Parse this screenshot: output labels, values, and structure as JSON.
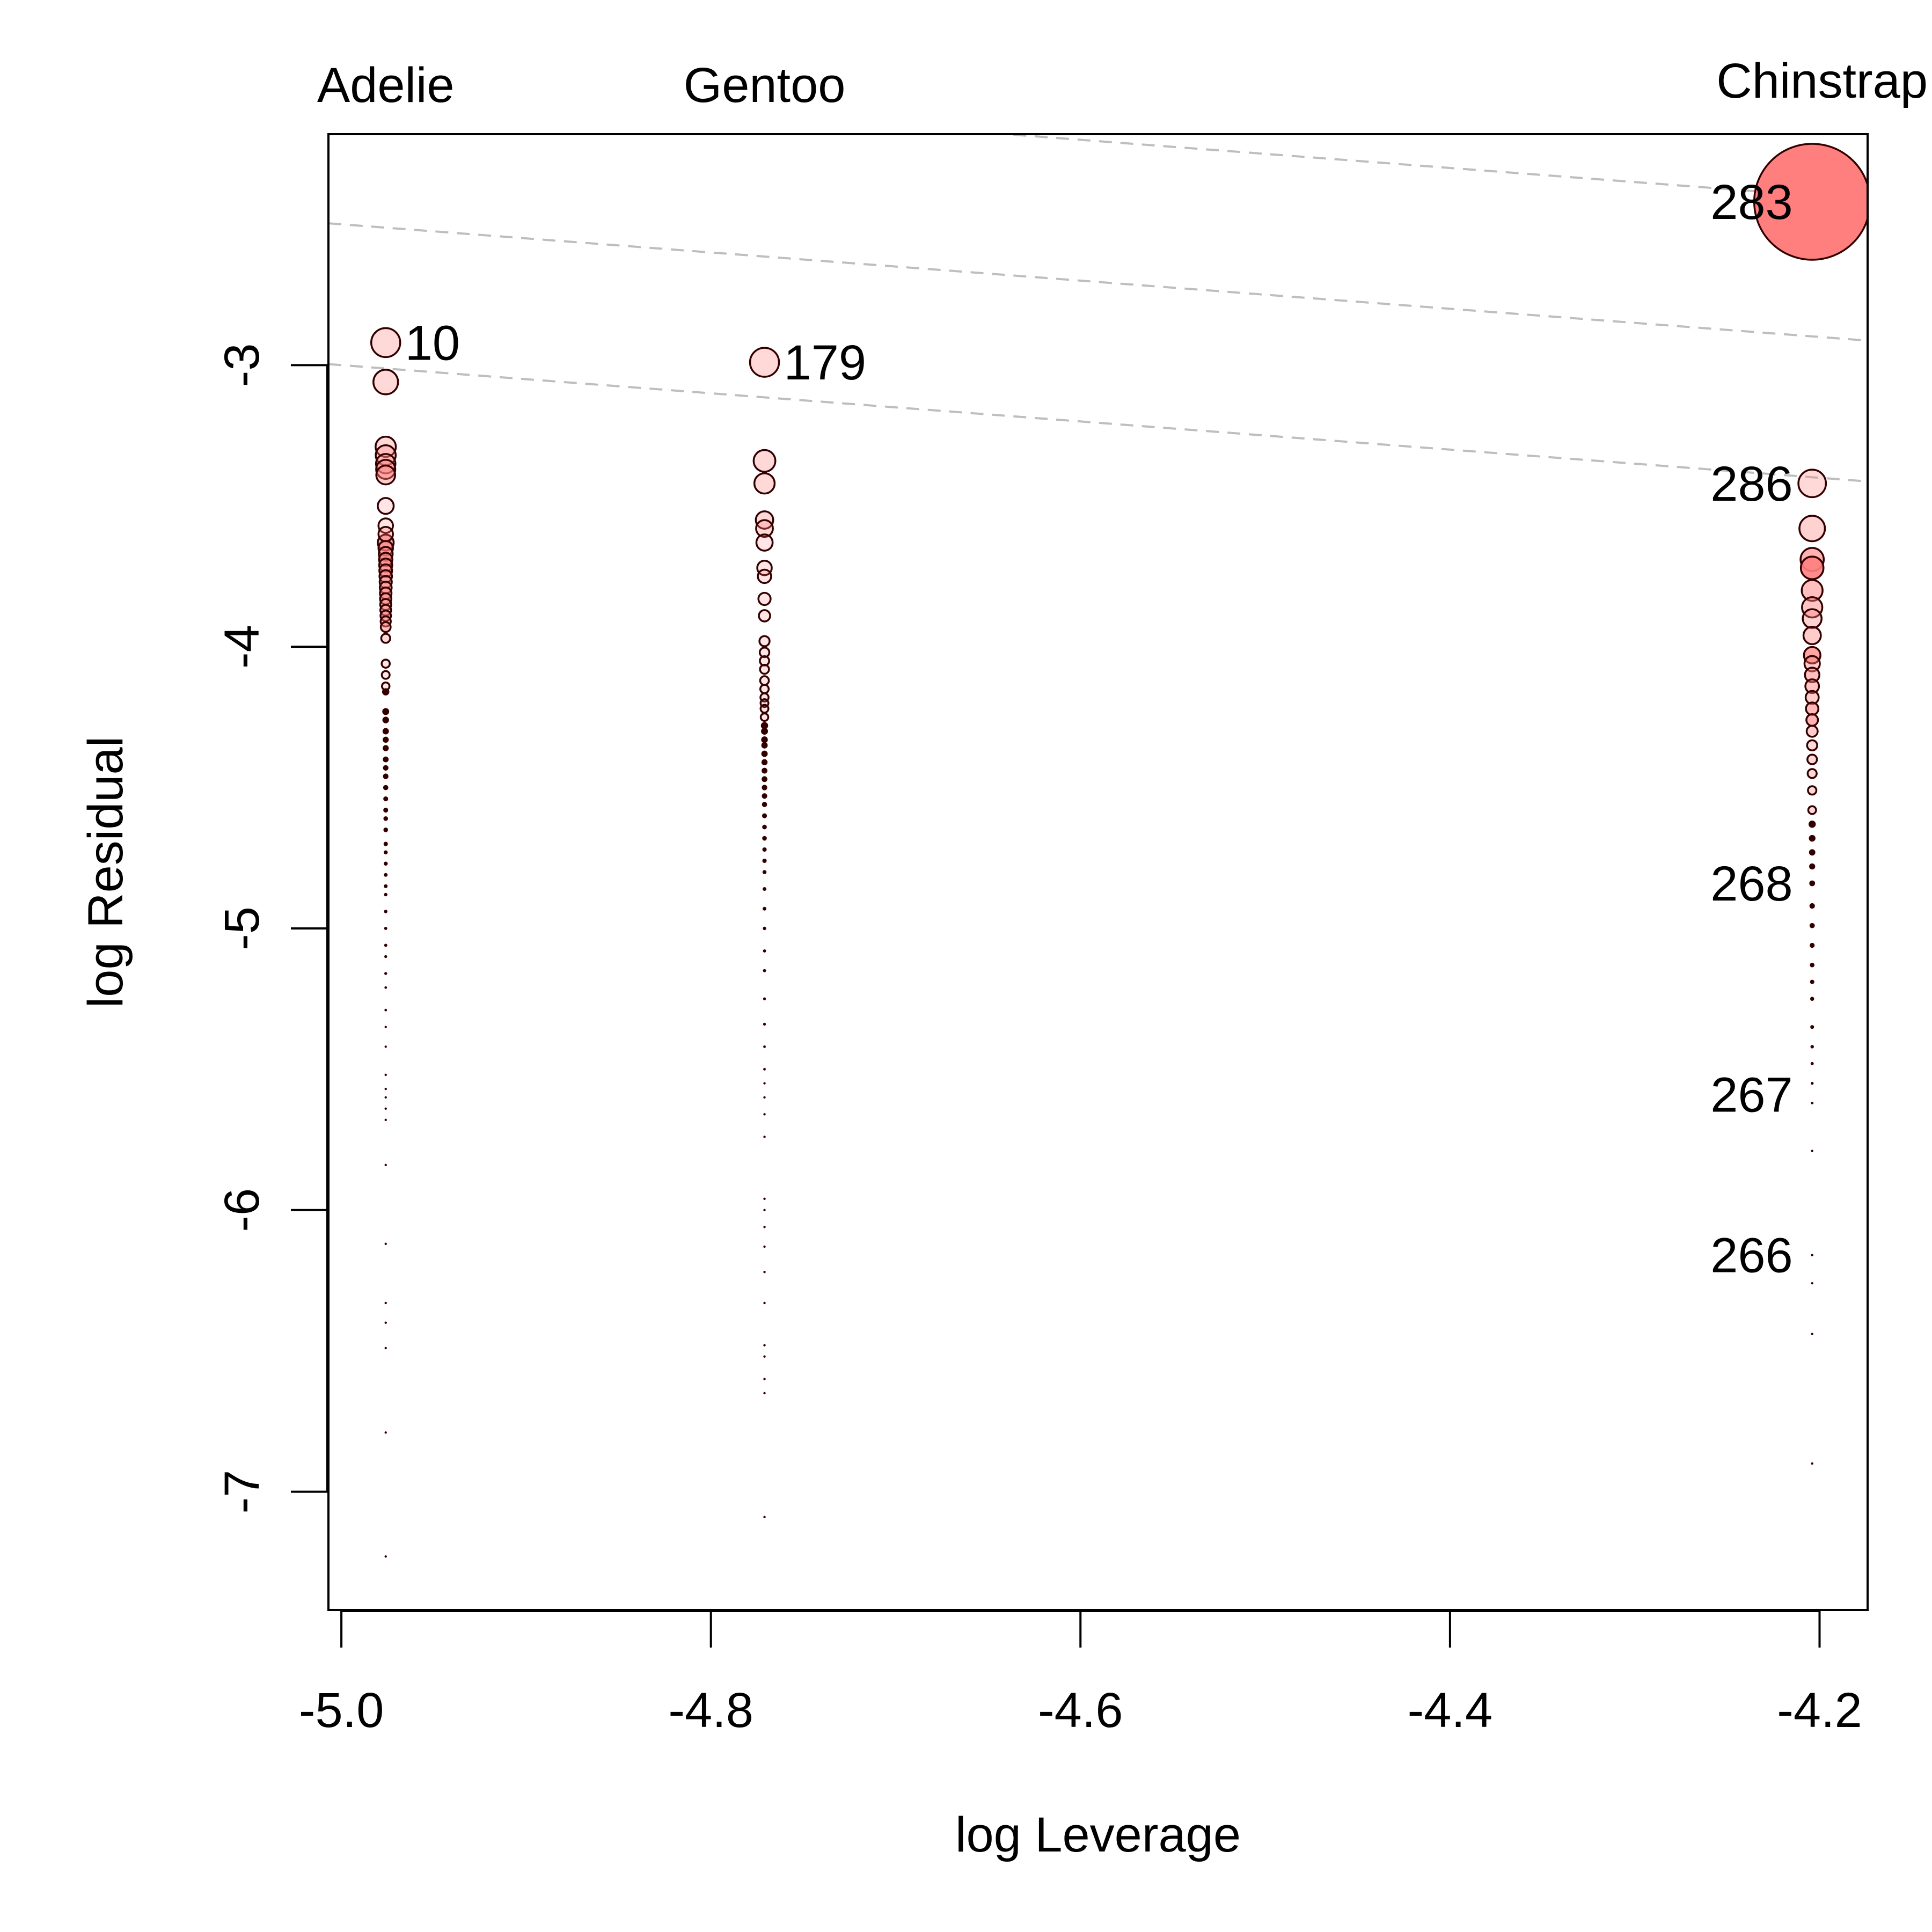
{
  "chart_data": {
    "type": "scatter",
    "title": "",
    "xlabel": "log Leverage",
    "ylabel": "log Residual",
    "xlim": [
      -5.007,
      -4.174
    ],
    "ylim": [
      -7.42,
      -2.18
    ],
    "x_ticks": [
      -5.0,
      -4.8,
      -4.6,
      -4.4,
      -4.2
    ],
    "x_tick_labels": [
      "-5.0",
      "-4.8",
      "-4.6",
      "-4.4",
      "-4.2"
    ],
    "y_ticks": [
      -3,
      -4,
      -5,
      -6,
      -7
    ],
    "y_tick_labels": [
      "-3",
      "-4",
      "-5",
      "-6",
      "-7"
    ],
    "grid": false,
    "top_labels": [
      {
        "text": "Adelie",
        "x": -4.976
      },
      {
        "text": "Gentoo",
        "x": -4.771
      },
      {
        "text": "Chinstrap",
        "x": -4.204
      }
    ],
    "contour_lines": {
      "slope": -0.5,
      "intercepts": [
        -5.5,
        -5.0,
        -4.5,
        -4.0,
        -3.5,
        -3.0,
        -2.5,
        -2.0,
        -1.5
      ],
      "color": "#bebebe"
    },
    "series": [
      {
        "group": "Adelie",
        "x": -4.976,
        "y": [
          -2.92,
          -3.06,
          -3.29,
          -3.32,
          -3.35,
          -3.37,
          -3.39,
          -3.5,
          -3.57,
          -3.6,
          -3.63,
          -3.65,
          -3.67,
          -3.69,
          -3.71,
          -3.73,
          -3.75,
          -3.77,
          -3.79,
          -3.81,
          -3.83,
          -3.85,
          -3.87,
          -3.89,
          -3.91,
          -3.93,
          -3.97,
          -4.06,
          -4.1,
          -4.14,
          -4.16,
          -4.23,
          -4.26,
          -4.3,
          -4.33,
          -4.36,
          -4.4,
          -4.43,
          -4.46,
          -4.5,
          -4.54,
          -4.58,
          -4.61,
          -4.65,
          -4.7,
          -4.73,
          -4.77,
          -4.81,
          -4.85,
          -4.88,
          -4.94,
          -5.0,
          -5.06,
          -5.1,
          -5.16,
          -5.21,
          -5.29,
          -5.35,
          -5.42,
          -5.52,
          -5.57,
          -5.6,
          -5.64,
          -5.68,
          -5.84,
          -6.12,
          -6.33,
          -6.4,
          -6.49,
          -6.79,
          -7.23
        ],
        "sizes": [
          1.0,
          0.85,
          0.7,
          0.69,
          0.67,
          0.66,
          0.65,
          0.55,
          0.5,
          0.5,
          0.55,
          0.5,
          0.48,
          0.46,
          0.45,
          0.44,
          0.43,
          0.42,
          0.41,
          0.4,
          0.39,
          0.38,
          0.37,
          0.36,
          0.35,
          0.34,
          0.31,
          0.28,
          0.27,
          0.26,
          0.25,
          0.24,
          0.23,
          0.22,
          0.21,
          0.21,
          0.2,
          0.19,
          0.19,
          0.18,
          0.17,
          0.17,
          0.16,
          0.16,
          0.15,
          0.14,
          0.14,
          0.13,
          0.13,
          0.12,
          0.12,
          0.11,
          0.11,
          0.1,
          0.1,
          0.09,
          0.09,
          0.08,
          0.08,
          0.08,
          0.07,
          0.07,
          0.07,
          0.07,
          0.06,
          0.06,
          0.05,
          0.05,
          0.05,
          0.05,
          0.05
        ],
        "fills": [
          0.3,
          0.3,
          0.3,
          0.3,
          0.35,
          0.5,
          0.4,
          0.2,
          0.2,
          0.3,
          0.7,
          0.5,
          0.45,
          0.7,
          0.4,
          0.6,
          0.5,
          0.4,
          0.55,
          0.5,
          0.6,
          0.45,
          0.5,
          0.55,
          0.4,
          0.5,
          0.3,
          0.2,
          0.2,
          0.2,
          0.2,
          0.2,
          0.2,
          0.2,
          0.2,
          0.2,
          0.2,
          0.2,
          0.2,
          0.2,
          0.2,
          0.2,
          0.2,
          0.2,
          0.2,
          0.2,
          0.2,
          0.2,
          0.2,
          0.2,
          0.2,
          0.2,
          0.2,
          0.2,
          0.2,
          0.2,
          0.2,
          0.2,
          0.2,
          0.2,
          0.2,
          0.2,
          0.2,
          0.2,
          0.2,
          0.2,
          0.2,
          0.2,
          0.2,
          0.2,
          0.2
        ]
      },
      {
        "group": "Gentoo",
        "x": -4.771,
        "y": [
          -2.99,
          -3.34,
          -3.42,
          -3.55,
          -3.58,
          -3.63,
          -3.72,
          -3.75,
          -3.83,
          -3.89,
          -3.98,
          -4.02,
          -4.05,
          -4.08,
          -4.12,
          -4.15,
          -4.18,
          -4.2,
          -4.22,
          -4.25,
          -4.28,
          -4.3,
          -4.33,
          -4.35,
          -4.38,
          -4.41,
          -4.44,
          -4.47,
          -4.5,
          -4.53,
          -4.56,
          -4.6,
          -4.64,
          -4.68,
          -4.72,
          -4.76,
          -4.8,
          -4.86,
          -4.93,
          -5.0,
          -5.08,
          -5.15,
          -5.25,
          -5.34,
          -5.42,
          -5.5,
          -5.55,
          -5.6,
          -5.66,
          -5.74,
          -5.96,
          -6.0,
          -6.06,
          -6.13,
          -6.22,
          -6.33,
          -6.48,
          -6.52,
          -6.6,
          -6.65,
          -7.09
        ],
        "sizes": [
          1.0,
          0.75,
          0.7,
          0.6,
          0.58,
          0.56,
          0.5,
          0.46,
          0.42,
          0.39,
          0.35,
          0.33,
          0.32,
          0.31,
          0.3,
          0.29,
          0.28,
          0.27,
          0.27,
          0.26,
          0.25,
          0.24,
          0.23,
          0.22,
          0.22,
          0.21,
          0.2,
          0.2,
          0.19,
          0.19,
          0.18,
          0.17,
          0.16,
          0.16,
          0.15,
          0.15,
          0.14,
          0.13,
          0.13,
          0.12,
          0.11,
          0.11,
          0.1,
          0.1,
          0.09,
          0.09,
          0.08,
          0.08,
          0.08,
          0.07,
          0.07,
          0.07,
          0.06,
          0.06,
          0.06,
          0.05,
          0.05,
          0.05,
          0.05,
          0.05,
          0.05
        ],
        "fills": [
          0.3,
          0.3,
          0.3,
          0.3,
          0.3,
          0.2,
          0.2,
          0.2,
          0.2,
          0.2,
          0.2,
          0.2,
          0.2,
          0.2,
          0.2,
          0.2,
          0.2,
          0.2,
          0.2,
          0.2,
          0.2,
          0.2,
          0.2,
          0.2,
          0.2,
          0.2,
          0.2,
          0.2,
          0.2,
          0.2,
          0.2,
          0.2,
          0.2,
          0.2,
          0.2,
          0.2,
          0.2,
          0.2,
          0.2,
          0.2,
          0.2,
          0.2,
          0.2,
          0.2,
          0.2,
          0.2,
          0.2,
          0.2,
          0.2,
          0.2,
          0.2,
          0.2,
          0.2,
          0.2,
          0.2,
          0.2,
          0.2,
          0.2,
          0.2,
          0.2,
          0.2
        ]
      },
      {
        "group": "Chinstrap",
        "x": -4.204,
        "y": [
          -2.42,
          -3.42,
          -3.58,
          -3.69,
          -3.72,
          -3.8,
          -3.86,
          -3.9,
          -3.96,
          -4.03,
          -4.06,
          -4.1,
          -4.14,
          -4.18,
          -4.22,
          -4.26,
          -4.3,
          -4.35,
          -4.4,
          -4.45,
          -4.51,
          -4.58,
          -4.63,
          -4.68,
          -4.73,
          -4.78,
          -4.84,
          -4.92,
          -4.99,
          -5.06,
          -5.13,
          -5.19,
          -5.25,
          -5.35,
          -5.42,
          -5.48,
          -5.55,
          -5.62,
          -5.79,
          -6.16,
          -6.26,
          -6.44,
          -6.9
        ],
        "sizes": [
          4.0,
          0.95,
          0.88,
          0.8,
          0.78,
          0.72,
          0.7,
          0.65,
          0.6,
          0.57,
          0.53,
          0.5,
          0.47,
          0.45,
          0.43,
          0.4,
          0.38,
          0.35,
          0.33,
          0.31,
          0.29,
          0.27,
          0.25,
          0.23,
          0.22,
          0.21,
          0.2,
          0.19,
          0.18,
          0.17,
          0.16,
          0.15,
          0.14,
          0.13,
          0.12,
          0.11,
          0.1,
          0.09,
          0.08,
          0.07,
          0.06,
          0.06,
          0.05
        ],
        "fills": [
          1.0,
          0.3,
          0.35,
          0.6,
          0.9,
          0.5,
          0.45,
          0.35,
          0.4,
          0.7,
          0.4,
          0.5,
          0.45,
          0.4,
          0.55,
          0.6,
          0.4,
          0.3,
          0.3,
          0.3,
          0.3,
          0.3,
          0.3,
          0.3,
          0.3,
          0.3,
          0.3,
          0.3,
          0.3,
          0.3,
          0.3,
          0.3,
          0.3,
          0.3,
          0.3,
          0.3,
          0.3,
          0.3,
          0.3,
          0.3,
          0.3,
          0.3,
          0.3
        ]
      }
    ],
    "point_labels": [
      {
        "text": "10",
        "x": -4.976,
        "y": -2.92,
        "side": "right"
      },
      {
        "text": "179",
        "x": -4.771,
        "y": -2.99,
        "side": "right"
      },
      {
        "text": "283",
        "x": -4.204,
        "y": -2.42,
        "side": "left"
      },
      {
        "text": "286",
        "x": -4.204,
        "y": -3.42,
        "side": "left"
      },
      {
        "text": "268",
        "x": -4.204,
        "y": -4.84,
        "side": "left"
      },
      {
        "text": "267",
        "x": -4.204,
        "y": -5.59,
        "side": "left"
      },
      {
        "text": "266",
        "x": -4.204,
        "y": -6.16,
        "side": "left"
      }
    ],
    "colors": {
      "point_fill": "#ff7f7f",
      "point_stroke": "#330000",
      "contour": "#bebebe"
    }
  }
}
